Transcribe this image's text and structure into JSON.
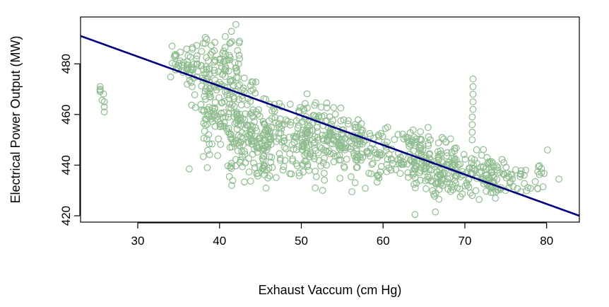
{
  "chart_data": {
    "type": "scatter",
    "title": "",
    "xlabel": "Exhaust Vaccum (cm Hg)",
    "ylabel": "Electrical Power Output (MW)",
    "xlim": [
      23,
      84
    ],
    "ylim": [
      417.5,
      498.5
    ],
    "xticks": [
      30,
      40,
      50,
      60,
      70,
      80
    ],
    "yticks": [
      420,
      440,
      460,
      480
    ],
    "point_color": "#8fbc8f",
    "line_color": "#000080",
    "regression_line": {
      "x": [
        23,
        84
      ],
      "y": [
        491.0,
        420.0
      ]
    },
    "clusters": [
      {
        "x": [
          25.3,
          25.8
        ],
        "y": [
          460,
          472
        ]
      },
      {
        "x": [
          34.0,
          36.5
        ],
        "y": [
          468,
          492
        ]
      },
      {
        "x": [
          36.5,
          42.5
        ],
        "y": [
          457,
          497
        ]
      },
      {
        "x": [
          38.0,
          44.5
        ],
        "y": [
          442,
          478
        ]
      },
      {
        "x": [
          41.0,
          46.5
        ],
        "y": [
          430,
          462
        ]
      },
      {
        "x": [
          44.5,
          52.0
        ],
        "y": [
          433,
          470
        ]
      },
      {
        "x": [
          50.0,
          55.5
        ],
        "y": [
          433,
          467
        ]
      },
      {
        "x": [
          53.0,
          58.0
        ],
        "y": [
          440,
          460
        ]
      },
      {
        "x": [
          56.0,
          66.0
        ],
        "y": [
          430,
          457
        ]
      },
      {
        "x": [
          63.0,
          69.0
        ],
        "y": [
          425,
          452
        ]
      },
      {
        "x": [
          66.5,
          75.0
        ],
        "y": [
          425,
          448
        ]
      },
      {
        "x": [
          72.0,
          80.0
        ],
        "y": [
          428,
          442
        ]
      }
    ],
    "points": [
      [
        25.4,
        471
      ],
      [
        25.4,
        470
      ],
      [
        25.4,
        469
      ],
      [
        25.9,
        465
      ],
      [
        25.9,
        463
      ],
      [
        25.9,
        461
      ],
      [
        36.3,
        438.5
      ],
      [
        38.5,
        439
      ],
      [
        41.2,
        435.5
      ],
      [
        34.2,
        487
      ],
      [
        71.0,
        474
      ],
      [
        71.0,
        471
      ],
      [
        71.0,
        468
      ],
      [
        71.0,
        465
      ],
      [
        71.0,
        462
      ],
      [
        70.9,
        459
      ],
      [
        70.9,
        456
      ],
      [
        70.9,
        453
      ],
      [
        70.9,
        450
      ],
      [
        63.9,
        420.5
      ],
      [
        66.4,
        421.5
      ],
      [
        80.1,
        446
      ],
      [
        81.5,
        434.5
      ],
      [
        56.2,
        429.5
      ],
      [
        51.7,
        431
      ],
      [
        52.6,
        430
      ]
    ]
  }
}
